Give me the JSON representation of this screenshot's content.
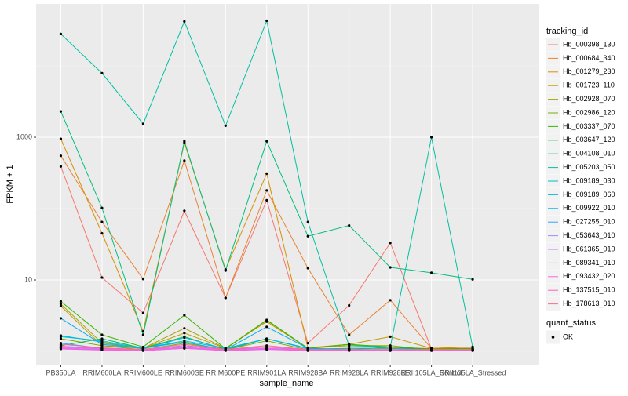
{
  "chart_data": {
    "type": "line",
    "log_y": true,
    "grid": true,
    "x_label": "sample_name",
    "y_label": "FPKM + 1",
    "categories": [
      "PB350LA",
      "RRIM600LA",
      "RRIM600LE",
      "RRIM600SE",
      "RRIM600PE",
      "RRIM901LA",
      "RRIM928BA",
      "RRIM928LA",
      "RRIM928LE",
      "RRII105LA_Control",
      "RRII105LA_Stressed"
    ],
    "ylim": [
      0.65,
      74000
    ],
    "yticks": [
      10,
      1000
    ],
    "legend_title": "tracking_id",
    "legend_position": "right",
    "point_legend": {
      "title": "quant_status",
      "items": [
        "OK"
      ],
      "color": "#000000"
    },
    "series": [
      {
        "name": "Hb_000398_130",
        "color": "#F8766D",
        "values": [
          390,
          10.8,
          3.45,
          93,
          5.6,
          131,
          1.3,
          4.4,
          33,
          1.08,
          1.1
        ]
      },
      {
        "name": "Hb_000684_340",
        "color": "#EA8331",
        "values": [
          550,
          65,
          10.3,
          470,
          5.6,
          180,
          14.6,
          1.7,
          5.2,
          1.1,
          1.15
        ]
      },
      {
        "name": "Hb_001279_230",
        "color": "#D89000",
        "values": [
          950,
          45,
          1.9,
          840,
          14,
          310,
          1.12,
          1.25,
          1.1,
          1.1,
          1.15
        ]
      },
      {
        "name": "Hb_001723_110",
        "color": "#C09B00",
        "values": [
          4.3,
          1.2,
          1.1,
          1.8,
          1.1,
          2.6,
          1.1,
          1.25,
          1.6,
          1.1,
          1.08
        ]
      },
      {
        "name": "Hb_002928_070",
        "color": "#A3A500",
        "values": [
          4.6,
          1.3,
          1.1,
          2.1,
          1.1,
          2.7,
          1.1,
          1.2,
          1.2,
          1.05,
          1.1
        ]
      },
      {
        "name": "Hb_002986_120",
        "color": "#7CAE00",
        "values": [
          1.5,
          1.2,
          1.05,
          1.3,
          1.05,
          1.4,
          1.05,
          1.1,
          1.1,
          1.05,
          1.05
        ]
      },
      {
        "name": "Hb_003337_070",
        "color": "#39B600",
        "values": [
          5.0,
          1.7,
          1.15,
          3.2,
          1.08,
          2.75,
          1.1,
          1.25,
          1.15,
          1.08,
          1.1
        ]
      },
      {
        "name": "Hb_003647_120",
        "color": "#00BB4E",
        "values": [
          1.2,
          1.5,
          1.1,
          1.6,
          1.05,
          1.5,
          1.1,
          1.05,
          1.15,
          1.05,
          1.05
        ]
      },
      {
        "name": "Hb_004108_010",
        "color": "#00BF7D",
        "values": [
          2300,
          102,
          1.7,
          880,
          13.5,
          880,
          41,
          58,
          15,
          12.6,
          10.2
        ]
      },
      {
        "name": "Hb_005203_050",
        "color": "#00C1A3",
        "values": [
          28000,
          7900,
          1540,
          42000,
          1450,
          43000,
          65,
          1.2,
          1.15,
          1000,
          1.15
        ]
      },
      {
        "name": "Hb_009189_030",
        "color": "#00BFC4",
        "values": [
          1.6,
          1.4,
          1.1,
          1.4,
          1.1,
          1.5,
          1.1,
          1.05,
          1.05,
          1.05,
          1.05
        ]
      },
      {
        "name": "Hb_009189_060",
        "color": "#00BAE0",
        "values": [
          1.66,
          1.35,
          1.08,
          1.55,
          1.08,
          1.5,
          1.08,
          1.1,
          1.1,
          1.05,
          1.05
        ]
      },
      {
        "name": "Hb_009922_010",
        "color": "#00B0F6",
        "values": [
          2.9,
          1.25,
          1.1,
          1.35,
          1.05,
          2.2,
          1.1,
          1.05,
          1.05,
          1.05,
          1.05
        ]
      },
      {
        "name": "Hb_027255_010",
        "color": "#35A2FF",
        "values": [
          1.3,
          1.1,
          1.05,
          1.2,
          1.05,
          1.15,
          1.05,
          1.05,
          1.05,
          1.05,
          1.05
        ]
      },
      {
        "name": "Hb_053643_010",
        "color": "#9590FF",
        "values": [
          1.15,
          1.08,
          1.05,
          1.12,
          1.05,
          1.1,
          1.05,
          1.05,
          1.05,
          1.05,
          1.05
        ]
      },
      {
        "name": "Hb_061365_010",
        "color": "#C77CFF",
        "values": [
          1.1,
          1.05,
          1.03,
          1.1,
          1.03,
          1.08,
          1.03,
          1.03,
          1.03,
          1.03,
          1.03
        ]
      },
      {
        "name": "Hb_089341_010",
        "color": "#E76BF3",
        "values": [
          1.12,
          1.06,
          1.04,
          1.15,
          1.04,
          1.1,
          1.04,
          1.04,
          1.04,
          1.04,
          1.04
        ]
      },
      {
        "name": "Hb_093432_020",
        "color": "#FA62DB",
        "values": [
          1.08,
          1.04,
          1.02,
          1.1,
          1.02,
          1.06,
          1.02,
          1.02,
          1.02,
          1.02,
          1.02
        ]
      },
      {
        "name": "Hb_137515_010",
        "color": "#FF62BC",
        "values": [
          1.18,
          1.1,
          1.05,
          1.2,
          1.05,
          1.15,
          1.05,
          1.05,
          1.05,
          1.05,
          1.05
        ]
      },
      {
        "name": "Hb_178613_010",
        "color": "#FF6C91",
        "values": [
          1.25,
          1.12,
          1.06,
          1.25,
          1.06,
          1.2,
          1.06,
          1.06,
          1.06,
          1.06,
          1.06
        ]
      }
    ]
  }
}
